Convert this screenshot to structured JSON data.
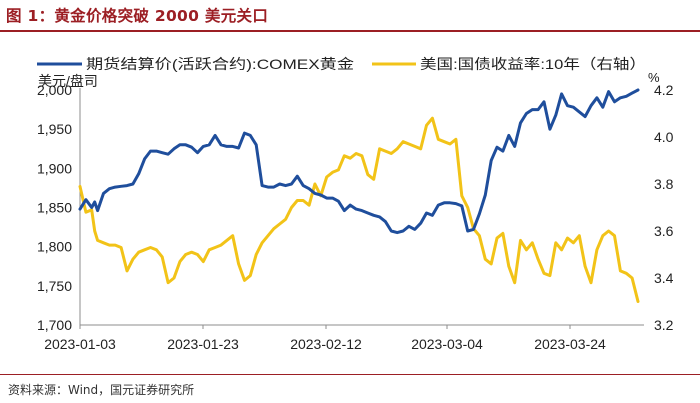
{
  "figure": {
    "title": "图 1：黄金价格突破 2000 美元关口",
    "source": "资料来源：Wind，国元证券研究所"
  },
  "chart_data": {
    "type": "line",
    "title": "黄金价格突破 2000 美元关口",
    "x_tick_labels": [
      "2023-01-03",
      "2023-01-23",
      "2023-02-12",
      "2023-03-04",
      "2023-03-24"
    ],
    "y_left": {
      "ylim": [
        1700,
        2000
      ],
      "ticks": [
        "1,700",
        "1,750",
        "1,800",
        "1,850",
        "1,900",
        "1,950",
        "2,000"
      ]
    },
    "y_right": {
      "ylim": [
        3.2,
        4.2
      ],
      "ticks": [
        "3.2",
        "3.4",
        "3.6",
        "3.8",
        "4.0",
        "4.2"
      ],
      "unit_label": "%"
    },
    "legend": {
      "position": "top",
      "gold_line1": "期货结算价(活跃合约):COMEX黄金",
      "gold_line2": "美元/盘司",
      "yield_label": "美国:国债收益率:10年（右轴）"
    },
    "colors": {
      "gold": "#1f4e9c",
      "yield": "#f2c318"
    },
    "series": [
      {
        "name": "期货结算价(活跃合约):COMEX黄金 美元/盘司",
        "axis": "left",
        "color": "#1f4e9c",
        "points": [
          [
            0,
            1848
          ],
          [
            1,
            1860
          ],
          [
            2,
            1850
          ],
          [
            2.5,
            1857
          ],
          [
            3,
            1846
          ],
          [
            4,
            1868
          ],
          [
            5,
            1874
          ],
          [
            6,
            1876
          ],
          [
            7,
            1877
          ],
          [
            8,
            1878
          ],
          [
            9,
            1880
          ],
          [
            10,
            1893
          ],
          [
            11,
            1912
          ],
          [
            12,
            1922
          ],
          [
            13,
            1922
          ],
          [
            14,
            1920
          ],
          [
            15,
            1918
          ],
          [
            16,
            1925
          ],
          [
            17,
            1930
          ],
          [
            18,
            1930
          ],
          [
            19,
            1927
          ],
          [
            20,
            1920
          ],
          [
            21,
            1928
          ],
          [
            22,
            1930
          ],
          [
            23,
            1942
          ],
          [
            24,
            1930
          ],
          [
            25,
            1928
          ],
          [
            26,
            1928
          ],
          [
            27,
            1926
          ],
          [
            28,
            1945
          ],
          [
            29,
            1942
          ],
          [
            30,
            1930
          ],
          [
            31,
            1878
          ],
          [
            32,
            1876
          ],
          [
            33,
            1876
          ],
          [
            34,
            1880
          ],
          [
            35,
            1878
          ],
          [
            36,
            1880
          ],
          [
            37,
            1890
          ],
          [
            38,
            1878
          ],
          [
            39,
            1874
          ],
          [
            40,
            1868
          ],
          [
            41,
            1866
          ],
          [
            42,
            1862
          ],
          [
            43,
            1862
          ],
          [
            44,
            1858
          ],
          [
            45,
            1846
          ],
          [
            46,
            1853
          ],
          [
            47,
            1848
          ],
          [
            48,
            1846
          ],
          [
            49,
            1843
          ],
          [
            50,
            1840
          ],
          [
            51,
            1838
          ],
          [
            52,
            1832
          ],
          [
            53,
            1820
          ],
          [
            54,
            1818
          ],
          [
            55,
            1820
          ],
          [
            56,
            1826
          ],
          [
            57,
            1822
          ],
          [
            58,
            1830
          ],
          [
            59,
            1843
          ],
          [
            60,
            1840
          ],
          [
            61,
            1853
          ],
          [
            62,
            1856
          ],
          [
            63,
            1856
          ],
          [
            64,
            1855
          ],
          [
            65,
            1852
          ],
          [
            66,
            1820
          ],
          [
            67,
            1822
          ],
          [
            68,
            1842
          ],
          [
            69,
            1866
          ],
          [
            70,
            1910
          ],
          [
            71,
            1927
          ],
          [
            72,
            1922
          ],
          [
            73,
            1942
          ],
          [
            74,
            1928
          ],
          [
            75,
            1958
          ],
          [
            76,
            1970
          ],
          [
            77,
            1975
          ],
          [
            78,
            1975
          ],
          [
            79,
            1985
          ],
          [
            80,
            1950
          ],
          [
            81,
            1968
          ],
          [
            82,
            1995
          ],
          [
            83,
            1980
          ],
          [
            84,
            1978
          ],
          [
            85,
            1972
          ],
          [
            86,
            1966
          ],
          [
            87,
            1980
          ],
          [
            88,
            1990
          ],
          [
            89,
            1978
          ],
          [
            90,
            1998
          ],
          [
            91,
            1985
          ],
          [
            92,
            1990
          ],
          [
            93,
            1992
          ],
          [
            94,
            1996
          ],
          [
            95,
            2000
          ]
        ]
      },
      {
        "name": "美国:国债收益率:10年（右轴）",
        "axis": "right",
        "color": "#f2c318",
        "points": [
          [
            0,
            3.79
          ],
          [
            1,
            3.68
          ],
          [
            2,
            3.69
          ],
          [
            2.5,
            3.6
          ],
          [
            3,
            3.56
          ],
          [
            4,
            3.55
          ],
          [
            5,
            3.54
          ],
          [
            6,
            3.54
          ],
          [
            7,
            3.53
          ],
          [
            8,
            3.43
          ],
          [
            9,
            3.48
          ],
          [
            10,
            3.51
          ],
          [
            11,
            3.52
          ],
          [
            12,
            3.53
          ],
          [
            13,
            3.52
          ],
          [
            14,
            3.49
          ],
          [
            15,
            3.38
          ],
          [
            16,
            3.4
          ],
          [
            17,
            3.47
          ],
          [
            18,
            3.5
          ],
          [
            19,
            3.51
          ],
          [
            20,
            3.5
          ],
          [
            21,
            3.47
          ],
          [
            22,
            3.52
          ],
          [
            23,
            3.53
          ],
          [
            24,
            3.54
          ],
          [
            25,
            3.56
          ],
          [
            26,
            3.58
          ],
          [
            27,
            3.46
          ],
          [
            28,
            3.39
          ],
          [
            29,
            3.41
          ],
          [
            30,
            3.5
          ],
          [
            31,
            3.55
          ],
          [
            32,
            3.58
          ],
          [
            33,
            3.61
          ],
          [
            34,
            3.63
          ],
          [
            35,
            3.65
          ],
          [
            36,
            3.7
          ],
          [
            37,
            3.73
          ],
          [
            38,
            3.73
          ],
          [
            39,
            3.71
          ],
          [
            40,
            3.8
          ],
          [
            41,
            3.75
          ],
          [
            42,
            3.83
          ],
          [
            43,
            3.85
          ],
          [
            44,
            3.86
          ],
          [
            45,
            3.92
          ],
          [
            46,
            3.91
          ],
          [
            47,
            3.93
          ],
          [
            48,
            3.92
          ],
          [
            49,
            3.84
          ],
          [
            50,
            3.82
          ],
          [
            51,
            3.95
          ],
          [
            52,
            3.94
          ],
          [
            53,
            3.93
          ],
          [
            54,
            3.95
          ],
          [
            55,
            3.98
          ],
          [
            56,
            3.97
          ],
          [
            57,
            3.96
          ],
          [
            58,
            3.95
          ],
          [
            59,
            4.05
          ],
          [
            60,
            4.08
          ],
          [
            61,
            3.99
          ],
          [
            62,
            3.98
          ],
          [
            63,
            3.97
          ],
          [
            64,
            3.99
          ],
          [
            65,
            3.75
          ],
          [
            66,
            3.7
          ],
          [
            67,
            3.61
          ],
          [
            68,
            3.58
          ],
          [
            69,
            3.48
          ],
          [
            70,
            3.46
          ],
          [
            71,
            3.57
          ],
          [
            72,
            3.59
          ],
          [
            73,
            3.45
          ],
          [
            74,
            3.38
          ],
          [
            75,
            3.56
          ],
          [
            76,
            3.52
          ],
          [
            77,
            3.55
          ],
          [
            78,
            3.48
          ],
          [
            79,
            3.42
          ],
          [
            80,
            3.41
          ],
          [
            81,
            3.55
          ],
          [
            82,
            3.52
          ],
          [
            83,
            3.57
          ],
          [
            84,
            3.55
          ],
          [
            85,
            3.58
          ],
          [
            86,
            3.45
          ],
          [
            87,
            3.38
          ],
          [
            88,
            3.52
          ],
          [
            89,
            3.58
          ],
          [
            90,
            3.6
          ],
          [
            91,
            3.58
          ],
          [
            92,
            3.43
          ],
          [
            93,
            3.42
          ],
          [
            94,
            3.4
          ],
          [
            95,
            3.3
          ]
        ]
      }
    ]
  }
}
